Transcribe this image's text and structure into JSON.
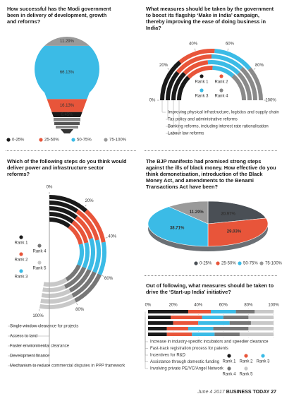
{
  "chart_data": [
    {
      "type": "bulb",
      "title": "How successful has the Modi government been in delivery of development, growth and reforms?",
      "categories": [
        "0-25%",
        "25-50%",
        "50-75%",
        "75-100%"
      ],
      "values": [
        6.45,
        16.13,
        66.13,
        11.29
      ],
      "value_labels": [
        "6.45%",
        "16.13%",
        "66.13%",
        "11.29%"
      ],
      "colors": [
        "#1a1a1a",
        "#e8553a",
        "#3bbbe6",
        "#9a9a9a"
      ],
      "legend": "bottom"
    },
    {
      "type": "radial",
      "title": "What measures should be taken by the government to boost its flagship ‘Make in India’ campaign, thereby improving the ease of doing business in India?",
      "categories": [
        "Improving physical infrastructure, logistics and supply chain",
        "Tax policy and administrative reforms",
        "Banking reforms, including interest rate rationalisation",
        "Labour law reforms"
      ],
      "series": [
        {
          "name": "Rank 1",
          "color": "#1a1a1a",
          "values": [
            28,
            22,
            25,
            25
          ]
        },
        {
          "name": "Rank 2",
          "color": "#e8553a",
          "values": [
            24,
            28,
            22,
            26
          ]
        },
        {
          "name": "Rank 3",
          "color": "#3bbbe6",
          "values": [
            26,
            24,
            28,
            22
          ]
        },
        {
          "name": "Rank 4",
          "color": "#8a8a8a",
          "values": [
            22,
            26,
            25,
            27
          ]
        }
      ],
      "xlim": [
        0,
        100
      ],
      "xticks": [
        {
          "value": 0,
          "label": "0%"
        },
        {
          "value": 20,
          "label": "20%"
        },
        {
          "value": 40,
          "label": "40%"
        },
        {
          "value": 60,
          "label": "60%"
        },
        {
          "value": 80,
          "label": "80%"
        },
        {
          "value": 100,
          "label": "100%"
        }
      ],
      "legend": "center"
    },
    {
      "type": "radial",
      "title": "Which of the following steps do you think would deliver power and infrastructure sector reforms?",
      "categories": [
        "Single window clearance for projects",
        "Access to land",
        "Faster environmental clearance",
        "Development finance",
        "Mechanism to reduce commercial disputes in PPP framework"
      ],
      "series": [
        {
          "name": "Rank 1",
          "color": "#1a1a1a",
          "values": [
            22,
            18,
            20,
            20,
            20
          ]
        },
        {
          "name": "Rank 2",
          "color": "#e8553a",
          "values": [
            20,
            22,
            18,
            20,
            20
          ]
        },
        {
          "name": "Rank 3",
          "color": "#3bbbe6",
          "values": [
            18,
            20,
            22,
            20,
            20
          ]
        },
        {
          "name": "Rank 4",
          "color": "#777777",
          "values": [
            20,
            20,
            20,
            22,
            18
          ]
        },
        {
          "name": "Rank 5",
          "color": "#c8c8c8",
          "values": [
            20,
            20,
            20,
            18,
            22
          ]
        }
      ],
      "xlim": [
        0,
        100
      ],
      "xticks": [
        {
          "value": 0,
          "label": "0%"
        },
        {
          "value": 20,
          "label": "20%"
        },
        {
          "value": 40,
          "label": "40%"
        },
        {
          "value": 60,
          "label": "60%"
        },
        {
          "value": 80,
          "label": "80%"
        },
        {
          "value": 100,
          "label": "100%"
        }
      ],
      "legend": "left"
    },
    {
      "type": "pie",
      "title": "The BJP manifesto had promised strong steps against the ills of black money. How effective do you think demonetisation, introduction of the Black Money Act, and amendments to the Benami Transactions Act have been?",
      "categories": [
        "0-25%",
        "25-50%",
        "50-75%",
        "75-100%"
      ],
      "values": [
        20.97,
        29.03,
        38.71,
        11.29
      ],
      "value_labels": [
        "20.97%",
        "29.03%",
        "38.71%",
        "11.29%"
      ],
      "colors": [
        "#4a4f55",
        "#e8553a",
        "#3bbbe6",
        "#9a9a9a"
      ],
      "legend": "bottom"
    },
    {
      "type": "bar",
      "title": "Out of following, what measures should be taken to drive the ‘Start-up India’ initiative?",
      "categories": [
        "Increase in industry-specific incubators and speedier clearance",
        "Fast-track registration process for patents",
        "Incentives for R&D",
        "Assistance through domestic funding",
        "Involving private PE/VC/Angel Network"
      ],
      "series": [
        {
          "name": "Rank 1",
          "color": "#1a1a1a",
          "values": [
            32,
            18,
            20,
            15,
            15
          ]
        },
        {
          "name": "Rank 2",
          "color": "#e8553a",
          "values": [
            18,
            25,
            20,
            17,
            20
          ]
        },
        {
          "name": "Rank 3",
          "color": "#3bbbe6",
          "values": [
            20,
            17,
            25,
            20,
            18
          ]
        },
        {
          "name": "Rank 4",
          "color": "#777777",
          "values": [
            15,
            20,
            17,
            28,
            20
          ]
        },
        {
          "name": "Rank 5",
          "color": "#c8c8c8",
          "values": [
            15,
            20,
            18,
            20,
            27
          ]
        }
      ],
      "xlim": [
        0,
        100
      ],
      "xticks": [
        {
          "value": 0,
          "label": "0%"
        },
        {
          "value": 20,
          "label": "20%"
        },
        {
          "value": 40,
          "label": "40%"
        },
        {
          "value": 60,
          "label": "60%"
        },
        {
          "value": 80,
          "label": "80%"
        },
        {
          "value": 100,
          "label": "100%"
        }
      ],
      "orientation": "horizontal",
      "legend": "bottom-right"
    }
  ],
  "footer": {
    "date": "June 4 2017",
    "publication": "BUSINESS TODAY",
    "page": "27"
  }
}
